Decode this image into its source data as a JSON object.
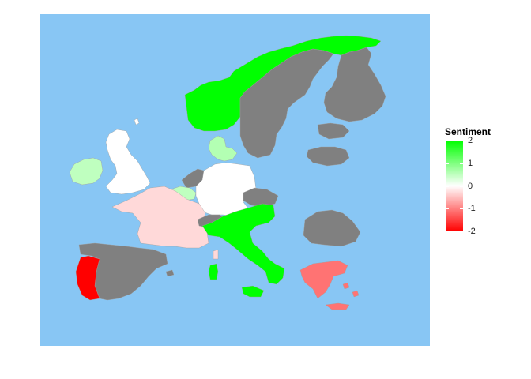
{
  "legend": {
    "title": "Sentiment",
    "min": -2,
    "max": 2,
    "low_color": "#ff0000",
    "mid_color": "#ffffff",
    "high_color": "#00ff00",
    "ticks": [
      {
        "value": 2,
        "label": "2"
      },
      {
        "value": 1,
        "label": "1"
      },
      {
        "value": 0,
        "label": "0"
      },
      {
        "value": -1,
        "label": "-1"
      },
      {
        "value": -2,
        "label": "-2"
      }
    ]
  },
  "colors": {
    "sea": "#88c6f4",
    "no_data": "#808080"
  },
  "countries": [
    {
      "name": "Norway",
      "sentiment": 2
    },
    {
      "name": "Italy",
      "sentiment": 2
    },
    {
      "name": "Denmark",
      "sentiment": 0.6
    },
    {
      "name": "Ireland",
      "sentiment": 0.5
    },
    {
      "name": "Belgium",
      "sentiment": 0.5
    },
    {
      "name": "United Kingdom",
      "sentiment": 0
    },
    {
      "name": "Germany",
      "sentiment": 0
    },
    {
      "name": "France",
      "sentiment": -0.3
    },
    {
      "name": "Greece",
      "sentiment": -1.1
    },
    {
      "name": "Portugal",
      "sentiment": -2
    },
    {
      "name": "Sweden",
      "sentiment": null
    },
    {
      "name": "Finland",
      "sentiment": null
    },
    {
      "name": "Estonia",
      "sentiment": null
    },
    {
      "name": "Latvia",
      "sentiment": null
    },
    {
      "name": "Netherlands",
      "sentiment": null
    },
    {
      "name": "Czech Republic",
      "sentiment": null
    },
    {
      "name": "Switzerland",
      "sentiment": null
    },
    {
      "name": "Spain",
      "sentiment": null
    },
    {
      "name": "Romania",
      "sentiment": null
    }
  ]
}
